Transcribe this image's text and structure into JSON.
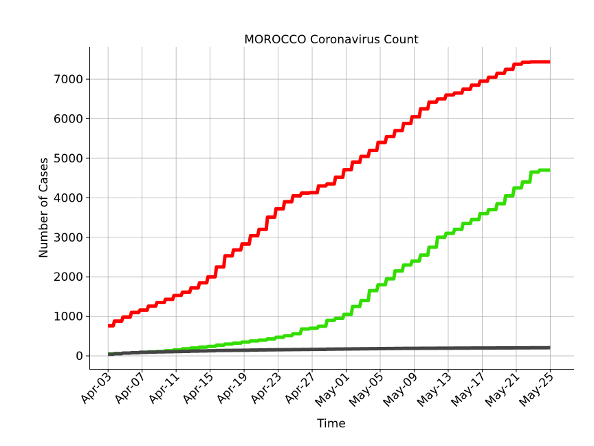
{
  "chart_data": {
    "type": "line",
    "title": "MOROCCO Coronavirus Count",
    "xlabel": "Time",
    "ylabel": "Number of Cases",
    "ylim": [
      -330,
      7820
    ],
    "xlim_days": [
      -2.2,
      54.8
    ],
    "grid": true,
    "legend": "none",
    "x_ticks": [
      {
        "label": "Apr-03",
        "day": 0
      },
      {
        "label": "Apr-07",
        "day": 4
      },
      {
        "label": "Apr-11",
        "day": 8
      },
      {
        "label": "Apr-15",
        "day": 12
      },
      {
        "label": "Apr-19",
        "day": 16
      },
      {
        "label": "Apr-23",
        "day": 20
      },
      {
        "label": "Apr-27",
        "day": 24
      },
      {
        "label": "May-01",
        "day": 28
      },
      {
        "label": "May-05",
        "day": 32
      },
      {
        "label": "May-09",
        "day": 36
      },
      {
        "label": "May-13",
        "day": 40
      },
      {
        "label": "May-17",
        "day": 44
      },
      {
        "label": "May-21",
        "day": 48
      },
      {
        "label": "May-25",
        "day": 52
      }
    ],
    "y_ticks": [
      0,
      1000,
      2000,
      3000,
      4000,
      5000,
      6000,
      7000
    ],
    "dates": [
      "Apr-03",
      "Apr-04",
      "Apr-05",
      "Apr-06",
      "Apr-07",
      "Apr-08",
      "Apr-09",
      "Apr-10",
      "Apr-11",
      "Apr-12",
      "Apr-13",
      "Apr-14",
      "Apr-15",
      "Apr-16",
      "Apr-17",
      "Apr-18",
      "Apr-19",
      "Apr-20",
      "Apr-21",
      "Apr-22",
      "Apr-23",
      "Apr-24",
      "Apr-25",
      "Apr-26",
      "Apr-27",
      "Apr-28",
      "Apr-29",
      "Apr-30",
      "May-01",
      "May-02",
      "May-03",
      "May-04",
      "May-05",
      "May-06",
      "May-07",
      "May-08",
      "May-09",
      "May-10",
      "May-11",
      "May-12",
      "May-13",
      "May-14",
      "May-15",
      "May-16",
      "May-17",
      "May-18",
      "May-19",
      "May-20",
      "May-21",
      "May-22",
      "May-23",
      "May-24",
      "May-25"
    ],
    "series": [
      {
        "color": "#ff0000",
        "values": [
          760,
          880,
          980,
          1100,
          1160,
          1260,
          1350,
          1430,
          1530,
          1610,
          1720,
          1850,
          2000,
          2250,
          2530,
          2680,
          2830,
          3040,
          3200,
          3510,
          3720,
          3900,
          4050,
          4120,
          4130,
          4300,
          4350,
          4520,
          4710,
          4900,
          5050,
          5200,
          5400,
          5550,
          5700,
          5880,
          6050,
          6250,
          6420,
          6500,
          6600,
          6650,
          6750,
          6850,
          6950,
          7050,
          7150,
          7250,
          7380,
          7430,
          7440,
          7440,
          7440
        ]
      },
      {
        "color": "#33dd00",
        "values": [
          50,
          60,
          70,
          80,
          90,
          100,
          110,
          130,
          150,
          180,
          200,
          220,
          240,
          270,
          300,
          320,
          350,
          380,
          400,
          430,
          470,
          510,
          560,
          680,
          700,
          750,
          900,
          950,
          1050,
          1250,
          1400,
          1650,
          1800,
          1950,
          2150,
          2300,
          2400,
          2550,
          2750,
          3000,
          3100,
          3200,
          3350,
          3450,
          3600,
          3700,
          3850,
          4050,
          4250,
          4400,
          4650,
          4700,
          4700
        ]
      },
      {
        "color": "#444444",
        "values": [
          40,
          55,
          70,
          80,
          90,
          95,
          100,
          105,
          110,
          115,
          120,
          125,
          130,
          135,
          138,
          140,
          143,
          146,
          150,
          153,
          155,
          158,
          160,
          162,
          164,
          167,
          170,
          172,
          175,
          177,
          180,
          182,
          184,
          186,
          188,
          190,
          191,
          192,
          193,
          194,
          195,
          196,
          197,
          198,
          199,
          200,
          201,
          202,
          203,
          204,
          205,
          206,
          207
        ]
      }
    ]
  }
}
